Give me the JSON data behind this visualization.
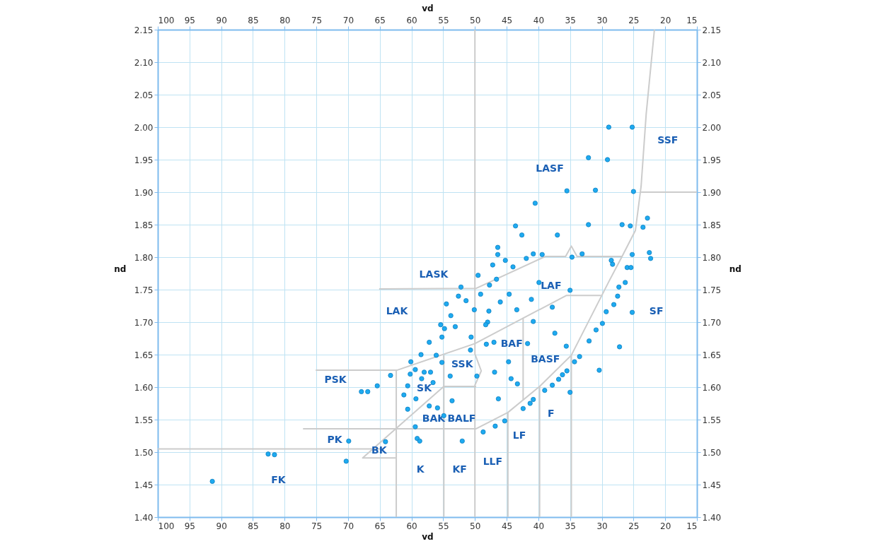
{
  "chart_data": {
    "type": "scatter",
    "xlabel": "vd",
    "ylabel": "nd",
    "x2label": "vd",
    "y2label": "nd",
    "xlim": [
      100,
      15
    ],
    "xticks": [
      100,
      95,
      90,
      85,
      80,
      75,
      70,
      65,
      60,
      55,
      50,
      45,
      40,
      35,
      30,
      25,
      20,
      15
    ],
    "x2lim": [
      100,
      15
    ],
    "x2ticks": [
      100,
      95,
      90,
      85,
      80,
      75,
      70,
      65,
      60,
      55,
      50,
      45,
      40,
      35,
      30,
      25,
      20,
      15
    ],
    "ylim": [
      1.4,
      2.15
    ],
    "yticks": [
      {
        "value": 1.4,
        "label": "1.40"
      },
      {
        "value": 1.45,
        "label": "1.45"
      },
      {
        "value": 1.5,
        "label": "1.50"
      },
      {
        "value": 1.55,
        "label": "1.55"
      },
      {
        "value": 1.6,
        "label": "1.60"
      },
      {
        "value": 1.65,
        "label": "1.65"
      },
      {
        "value": 1.7,
        "label": "1.70"
      },
      {
        "value": 1.75,
        "label": "1.75"
      },
      {
        "value": 1.8,
        "label": "1.80"
      },
      {
        "value": 1.85,
        "label": "1.85"
      },
      {
        "value": 1.9,
        "label": "1.90"
      },
      {
        "value": 1.95,
        "label": "1.95"
      },
      {
        "value": 2.0,
        "label": "2.00"
      },
      {
        "value": 2.05,
        "label": "2.05"
      },
      {
        "value": 2.1,
        "label": "2.10"
      },
      {
        "value": 2.15,
        "label": "2.15"
      }
    ],
    "y2lim": [
      1.4,
      2.15
    ],
    "y2ticks": [
      {
        "value": 1.4,
        "label": "1.40"
      },
      {
        "value": 1.45,
        "label": "1.45"
      },
      {
        "value": 1.5,
        "label": "1.50"
      },
      {
        "value": 1.55,
        "label": "1.55"
      },
      {
        "value": 1.6,
        "label": "1.60"
      },
      {
        "value": 1.65,
        "label": "1.65"
      },
      {
        "value": 1.7,
        "label": "1.70"
      },
      {
        "value": 1.75,
        "label": "1.75"
      },
      {
        "value": 1.8,
        "label": "1.80"
      },
      {
        "value": 1.85,
        "label": "1.85"
      },
      {
        "value": 1.9,
        "label": "1.90"
      },
      {
        "value": 1.95,
        "label": "1.95"
      },
      {
        "value": 2.0,
        "label": "2.00"
      },
      {
        "value": 2.05,
        "label": "2.05"
      },
      {
        "value": 2.1,
        "label": "2.10"
      },
      {
        "value": 2.15,
        "label": "2.15"
      }
    ],
    "grid": true,
    "legend": false,
    "series": [
      {
        "marker": "circle",
        "color": "#1eaaf0",
        "x": [
          28.9,
          25.2,
          32.1,
          29.1,
          35.5,
          31.0,
          25.0,
          40.5,
          43.6,
          42.6,
          37.0,
          32.1,
          26.8,
          25.5,
          23.5,
          22.8,
          46.4,
          46.4,
          45.2,
          44.0,
          41.9,
          40.8,
          39.4,
          47.2,
          34.7,
          33.1,
          28.5,
          28.3,
          25.2,
          22.5,
          22.3,
          26.0,
          25.4,
          26.3,
          27.3,
          49.5,
          46.6,
          47.7,
          52.2,
          39.9,
          35.0,
          52.6,
          51.4,
          49.1,
          44.6,
          41.1,
          46.0,
          54.5,
          50.1,
          47.8,
          43.4,
          37.8,
          27.5,
          28.1,
          29.3,
          25.2,
          53.8,
          55.4,
          54.8,
          53.1,
          48.0,
          48.3,
          40.8,
          29.9,
          55.2,
          50.6,
          37.4,
          30.9,
          57.2,
          48.2,
          47.0,
          41.7,
          35.6,
          32.0,
          27.2,
          50.7,
          58.5,
          56.1,
          60.1,
          55.2,
          44.7,
          33.5,
          34.3,
          59.4,
          58.0,
          57.0,
          60.2,
          63.3,
          53.9,
          49.7,
          46.9,
          44.3,
          43.3,
          35.5,
          36.2,
          36.8,
          37.8,
          39.0,
          35.0,
          30.4,
          58.4,
          56.6,
          60.6,
          65.4,
          66.9,
          67.9,
          61.2,
          59.3,
          46.3,
          57.2,
          55.9,
          53.6,
          60.6,
          54.9,
          40.8,
          41.3,
          42.4,
          45.3,
          46.8,
          48.7,
          59.4,
          59.1,
          58.7,
          52.0,
          64.1,
          69.9,
          70.3,
          82.6,
          81.6,
          91.4
        ],
        "values": [
          2.0,
          2.0,
          1.953,
          1.95,
          1.902,
          1.903,
          1.901,
          1.883,
          1.848,
          1.834,
          1.834,
          1.85,
          1.85,
          1.848,
          1.846,
          1.86,
          1.815,
          1.804,
          1.795,
          1.785,
          1.798,
          1.805,
          1.804,
          1.788,
          1.8,
          1.805,
          1.795,
          1.789,
          1.804,
          1.807,
          1.798,
          1.784,
          1.784,
          1.761,
          1.754,
          1.772,
          1.766,
          1.757,
          1.754,
          1.761,
          1.749,
          1.74,
          1.733,
          1.743,
          1.743,
          1.735,
          1.731,
          1.728,
          1.719,
          1.717,
          1.719,
          1.723,
          1.74,
          1.727,
          1.716,
          1.715,
          1.71,
          1.696,
          1.69,
          1.693,
          1.7,
          1.696,
          1.701,
          1.698,
          1.677,
          1.677,
          1.683,
          1.688,
          1.669,
          1.666,
          1.669,
          1.667,
          1.663,
          1.671,
          1.662,
          1.657,
          1.65,
          1.649,
          1.639,
          1.638,
          1.639,
          1.647,
          1.639,
          1.627,
          1.623,
          1.623,
          1.62,
          1.618,
          1.617,
          1.617,
          1.623,
          1.613,
          1.605,
          1.625,
          1.619,
          1.612,
          1.603,
          1.595,
          1.592,
          1.626,
          1.613,
          1.607,
          1.602,
          1.602,
          1.593,
          1.593,
          1.588,
          1.582,
          1.582,
          1.571,
          1.568,
          1.579,
          1.566,
          1.556,
          1.581,
          1.575,
          1.567,
          1.548,
          1.54,
          1.531,
          1.539,
          1.521,
          1.517,
          1.517,
          1.516,
          1.517,
          1.486,
          1.497,
          1.496,
          1.455
        ]
      },
      {
        "type": "line",
        "color": "#cccccc",
        "x": [
          50,
          50,
          49,
          50,
          50
        ],
        "values": [
          2.15,
          1.651,
          1.625,
          1.603,
          1.4
        ]
      },
      {
        "type": "line",
        "color": "#cccccc",
        "x": [
          21.7,
          23.0,
          23.8,
          24.7,
          26.8,
          28.8,
          34.8,
          39.8,
          44.8,
          49.8,
          77.1
        ],
        "values": [
          2.15,
          2.02,
          1.909,
          1.841,
          1.801,
          1.764,
          1.649,
          1.601,
          1.561,
          1.536,
          1.536
        ]
      },
      {
        "type": "line",
        "color": "#cccccc",
        "x": [
          23.8,
          15
        ],
        "values": [
          1.9,
          1.9
        ]
      },
      {
        "type": "line",
        "color": "#cccccc",
        "x": [
          26.8,
          33.9,
          34.8,
          35.7,
          38.9,
          49.8,
          65.1
        ],
        "values": [
          1.801,
          1.801,
          1.817,
          1.801,
          1.801,
          1.752,
          1.751
        ]
      },
      {
        "type": "line",
        "color": "#cccccc",
        "x": [
          30.1,
          35.6,
          42.4,
          50.0,
          62.3,
          75.1
        ],
        "values": [
          1.741,
          1.741,
          1.706,
          1.667,
          1.626,
          1.626
        ]
      },
      {
        "type": "line",
        "color": "#cccccc",
        "x": [
          42.4,
          42.4
        ],
        "values": [
          1.706,
          1.58
        ]
      },
      {
        "type": "line",
        "color": "#cccccc",
        "x": [
          54.9,
          54.9
        ],
        "values": [
          1.649,
          1.4
        ]
      },
      {
        "type": "line",
        "color": "#cccccc",
        "x": [
          54.9,
          49.8
        ],
        "values": [
          1.601,
          1.601
        ]
      },
      {
        "type": "line",
        "color": "#cccccc",
        "x": [
          54.9,
          67.7,
          62.5
        ],
        "values": [
          1.601,
          1.491,
          1.491
        ]
      },
      {
        "type": "line",
        "color": "#cccccc",
        "x": [
          62.4,
          62.4
        ],
        "values": [
          1.626,
          1.4
        ]
      },
      {
        "type": "line",
        "color": "#cccccc",
        "x": [
          100,
          64.5
        ],
        "values": [
          1.505,
          1.505
        ]
      },
      {
        "type": "line",
        "color": "#cccccc",
        "x": [
          44.8,
          44.8
        ],
        "values": [
          1.561,
          1.4
        ]
      },
      {
        "type": "line",
        "color": "#cccccc",
        "x": [
          39.8,
          39.8
        ],
        "values": [
          1.601,
          1.4
        ]
      },
      {
        "type": "line",
        "color": "#cccccc",
        "x": [
          34.8,
          34.8
        ],
        "values": [
          1.649,
          1.4
        ]
      }
    ],
    "annotations": [
      "SSF",
      "LASF",
      "LASK",
      "LAF",
      "LAK",
      "SF",
      "BAF",
      "SSK",
      "BASF",
      "PSK",
      "SK",
      "BAK",
      "BALF",
      "F",
      "PK",
      "LF",
      "BK",
      "LLF",
      "K",
      "KF",
      "FK"
    ]
  }
}
